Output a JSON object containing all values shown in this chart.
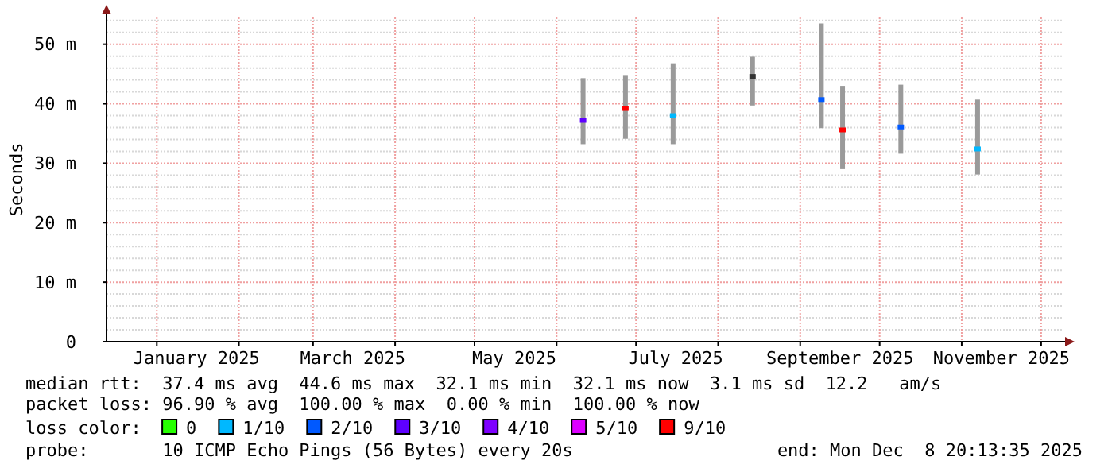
{
  "chart_data": {
    "type": "scatter",
    "ylabel": "Seconds",
    "legend_title": "loss color:",
    "legend": "bottom",
    "grid": true,
    "marker": "square",
    "xlim": [
      "2024-12-13",
      "2025-12-08T20:13"
    ],
    "xticks": [
      {
        "value": "2025-01-01",
        "label": null
      },
      {
        "value": "2025-01-16",
        "label": "January 2025"
      },
      {
        "value": "2025-02-01",
        "label": null
      },
      {
        "value": "2025-03-01",
        "label": null
      },
      {
        "value": "2025-03-16",
        "label": "March 2025"
      },
      {
        "value": "2025-04-01",
        "label": null
      },
      {
        "value": "2025-05-01",
        "label": null
      },
      {
        "value": "2025-05-16",
        "label": "May 2025"
      },
      {
        "value": "2025-06-01",
        "label": null
      },
      {
        "value": "2025-07-01",
        "label": null
      },
      {
        "value": "2025-07-16",
        "label": "July 2025"
      },
      {
        "value": "2025-08-01",
        "label": null
      },
      {
        "value": "2025-09-01",
        "label": null
      },
      {
        "value": "2025-09-16",
        "label": "September 2025"
      },
      {
        "value": "2025-10-01",
        "label": null
      },
      {
        "value": "2025-11-01",
        "label": null
      },
      {
        "value": "2025-11-16",
        "label": "November 2025"
      },
      {
        "value": "2025-12-01",
        "label": null
      }
    ],
    "ylim": [
      0,
      54.5
    ],
    "yticks": [
      0,
      {
        "value": 10,
        "label": "10 m"
      },
      {
        "value": 20,
        "label": "20 m"
      },
      {
        "value": 30,
        "label": "30 m"
      },
      {
        "value": 40,
        "label": "40 m"
      },
      {
        "value": 50,
        "label": "50 m"
      }
    ],
    "series": [
      {
        "name": "0",
        "color": "#26ff00"
      },
      {
        "name": "1/10",
        "color": "#00b8ff",
        "x": [
          "2025-07-15",
          "2025-11-07"
        ],
        "values": [
          38.0,
          32.4
        ],
        "errors": [
          [
            33.2,
            46.8
          ],
          [
            28.1,
            40.7
          ]
        ]
      },
      {
        "name": "2/10",
        "color": "#0059ff",
        "x": [
          "2025-09-09",
          "2025-10-09"
        ],
        "values": [
          40.7,
          36.1
        ],
        "errors": [
          [
            35.9,
            53.5
          ],
          [
            31.6,
            43.2
          ]
        ]
      },
      {
        "name": "3/10",
        "color": "#5e00ff",
        "x": [
          "2025-06-11"
        ],
        "values": [
          37.2
        ],
        "errors": [
          [
            33.2,
            44.3
          ]
        ]
      },
      {
        "name": "4/10",
        "color": "#7e00ff"
      },
      {
        "name": "5/10",
        "color": "#dd00ff"
      },
      {
        "name": "9/10",
        "color": "#ff0000",
        "x": [
          "2025-06-27",
          "2025-09-17"
        ],
        "values": [
          39.2,
          35.6
        ],
        "errors": [
          [
            34.1,
            44.7
          ],
          [
            29.0,
            43.0
          ]
        ]
      },
      {
        "color": "#333333",
        "x": [
          "2025-08-14"
        ],
        "values": [
          44.6
        ],
        "errors": [
          [
            39.7,
            47.9
          ]
        ]
      }
    ],
    "annotations": [
      "median rtt:  37.4 ms avg  44.6 ms max  32.1 ms min  32.1 ms now  3.1 ms sd  12.2   am/s",
      "packet loss: 96.90 % avg  100.00 % max  0.00 % min  100.00 % now",
      "probe:       10 ICMP Echo Pings (56 Bytes) every 20s",
      "end: Mon Dec  8 20:13:35 2025"
    ]
  }
}
